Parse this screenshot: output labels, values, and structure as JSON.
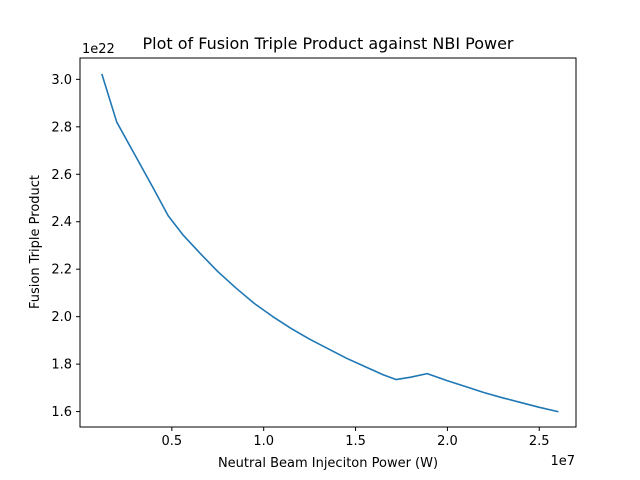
{
  "chart_data": {
    "type": "line",
    "title": "Plot of Fusion Triple Product against NBI Power",
    "xlabel": "Neutral Beam Injeciton Power (W)",
    "ylabel": "Fusion Triple Product",
    "x_offset_label": "1e7",
    "y_offset_label": "1e22",
    "xlim": [
      0,
      2.7
    ],
    "ylim": [
      1.535,
      3.09
    ],
    "x_ticks": [
      0.5,
      1.0,
      1.5,
      2.0,
      2.5
    ],
    "x_tick_labels": [
      "0.5",
      "1.0",
      "1.5",
      "2.0",
      "2.5"
    ],
    "y_ticks": [
      1.6,
      1.8,
      2.0,
      2.2,
      2.4,
      2.6,
      2.8,
      3.0
    ],
    "y_tick_labels": [
      "1.6",
      "1.8",
      "2.0",
      "2.2",
      "2.4",
      "2.6",
      "2.8",
      "3.0"
    ],
    "grid": false,
    "series": [
      {
        "color": "#1f77b4",
        "x": [
          0.12,
          0.2,
          0.3,
          0.4,
          0.48,
          0.56,
          0.65,
          0.75,
          0.85,
          0.95,
          1.05,
          1.15,
          1.25,
          1.35,
          1.45,
          1.55,
          1.65,
          1.72,
          1.8,
          1.89,
          2.0,
          2.1,
          2.2,
          2.3,
          2.4,
          2.5,
          2.6
        ],
        "y": [
          3.02,
          2.82,
          2.68,
          2.54,
          2.425,
          2.345,
          2.27,
          2.19,
          2.12,
          2.055,
          2.0,
          1.95,
          1.905,
          1.865,
          1.825,
          1.79,
          1.755,
          1.735,
          1.745,
          1.76,
          1.73,
          1.705,
          1.68,
          1.658,
          1.638,
          1.618,
          1.6
        ]
      }
    ]
  }
}
